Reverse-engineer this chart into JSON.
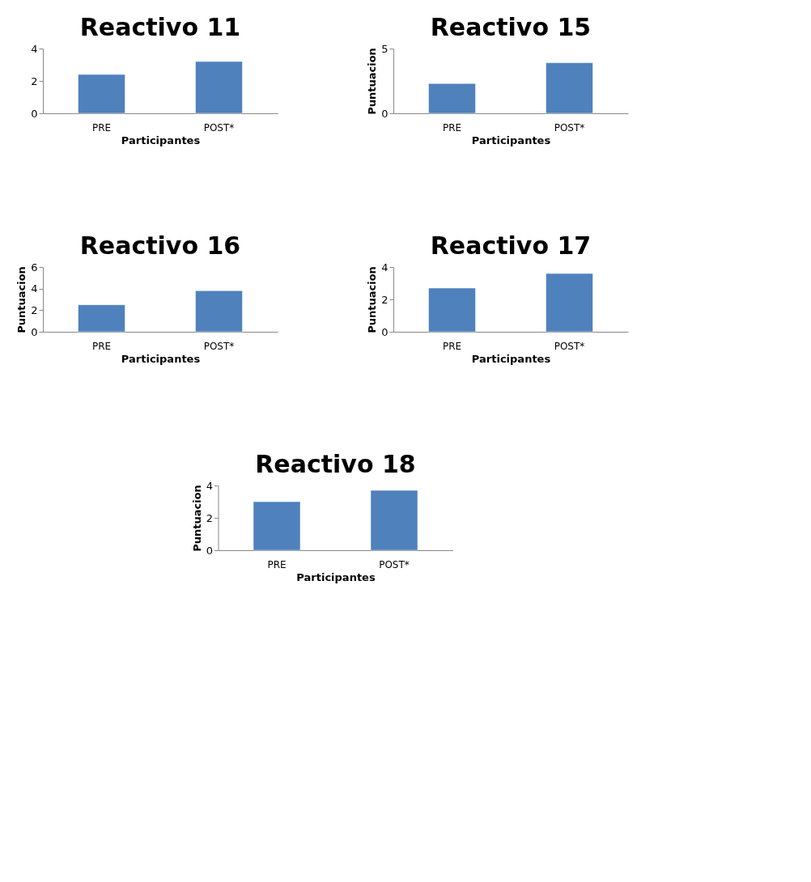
{
  "chart_data": [
    {
      "type": "bar",
      "title": "Reactivo 11",
      "xlabel": "Participantes",
      "categories": [
        "PRE",
        "POST*"
      ],
      "values": [
        2.4,
        3.2
      ],
      "color": "#4f81bd",
      "ylim": [
        0,
        4
      ],
      "yticks": [
        0,
        2,
        4
      ],
      "grid": false,
      "legend": false
    },
    {
      "type": "bar",
      "title": "Reactivo 15",
      "xlabel": "Participantes",
      "ylabel": "Puntuacion",
      "categories": [
        "PRE",
        "POST*"
      ],
      "values": [
        2.3,
        3.9
      ],
      "color": "#4f81bd",
      "ylim": [
        0,
        5
      ],
      "yticks": [
        0,
        5
      ],
      "grid": false,
      "legend": false
    },
    {
      "type": "bar",
      "title": "Reactivo 16",
      "xlabel": "Participantes",
      "ylabel": "Puntuacion",
      "categories": [
        "PRE",
        "POST*"
      ],
      "values": [
        2.5,
        3.8
      ],
      "color": "#4f81bd",
      "ylim": [
        0,
        6
      ],
      "yticks": [
        0,
        2,
        4,
        6
      ],
      "grid": false,
      "legend": false
    },
    {
      "type": "bar",
      "title": "Reactivo 17",
      "xlabel": "Participantes",
      "ylabel": "Puntuacion",
      "categories": [
        "PRE",
        "POST*"
      ],
      "values": [
        2.7,
        3.6
      ],
      "color": "#4f81bd",
      "ylim": [
        0,
        4
      ],
      "yticks": [
        0,
        2,
        4
      ],
      "grid": false,
      "legend": false
    },
    {
      "type": "bar",
      "title": "Reactivo 18",
      "xlabel": "Participantes",
      "ylabel": "Puntuacion",
      "categories": [
        "PRE",
        "POST*"
      ],
      "values": [
        3.0,
        3.7
      ],
      "color": "#4f81bd",
      "ylim": [
        0,
        4
      ],
      "yticks": [
        0,
        2,
        4
      ],
      "grid": false,
      "legend": false
    }
  ]
}
